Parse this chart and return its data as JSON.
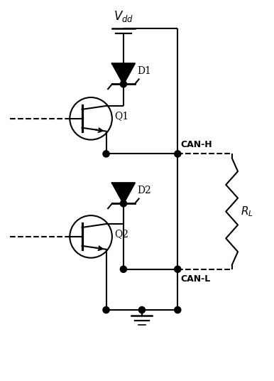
{
  "bg_color": "#ffffff",
  "line_color": "#000000",
  "line_width": 1.5,
  "vdd_label": "$V_{dd}$",
  "d1_label": "D1",
  "d2_label": "D2",
  "q1_label": "Q1",
  "q2_label": "Q2",
  "canh_label": "CAN-H",
  "canl_label": "CAN-L",
  "rl_label": "$R_L$",
  "figsize": [
    3.86,
    5.36
  ],
  "dpi": 100
}
